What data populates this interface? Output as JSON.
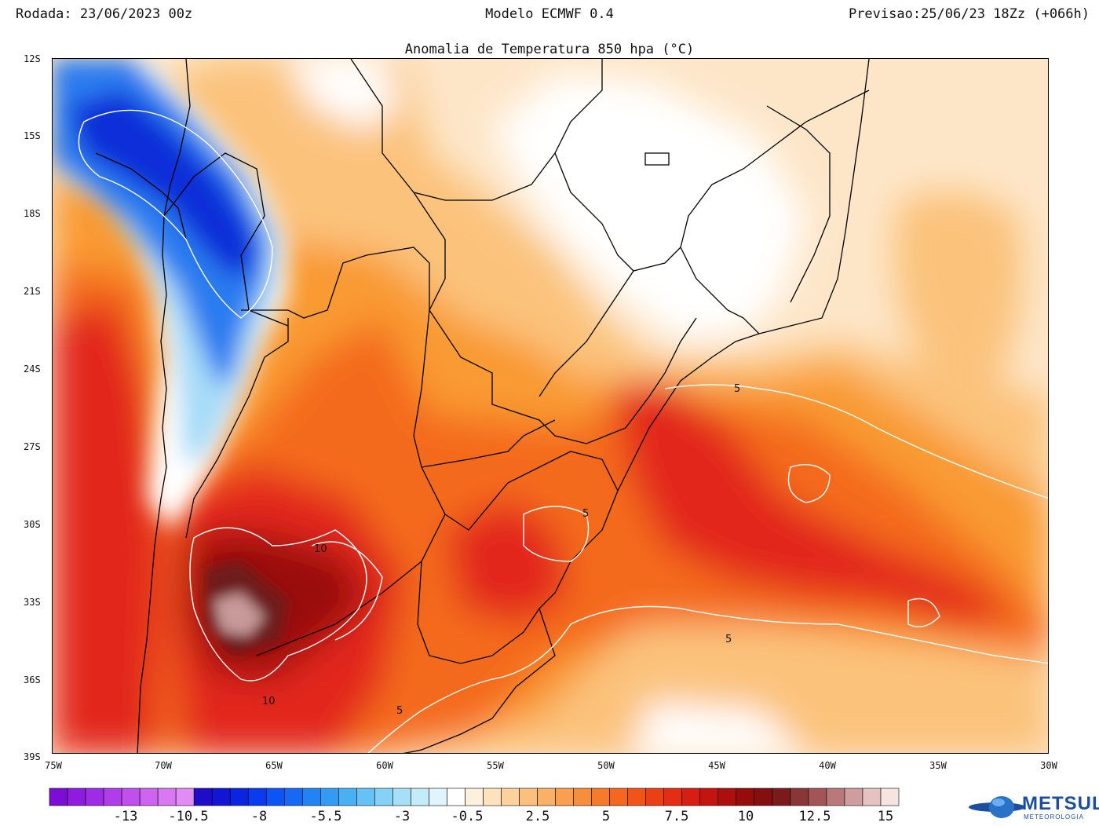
{
  "header": {
    "run": "Rodada: 23/06/2023 00z",
    "model": "Modelo ECMWF 0.4",
    "forecast": "Previsao:25/06/23 18Zz (+066h)",
    "title": "Anomalia de Temperatura 850 hpa (°C)"
  },
  "map": {
    "lat_labels": [
      "12S",
      "15S",
      "18S",
      "21S",
      "24S",
      "27S",
      "30S",
      "33S",
      "36S",
      "39S"
    ],
    "lon_labels": [
      "75W",
      "70W",
      "65W",
      "60W",
      "55W",
      "50W",
      "45W",
      "40W",
      "35W",
      "30W"
    ],
    "contour_labels": [
      "10",
      "10",
      "5",
      "5",
      "5",
      "5"
    ],
    "colors": {
      "deep_blue": "#0a2fd8",
      "blue": "#2b7cf0",
      "light_blue": "#a8dcf8",
      "white": "#ffffff",
      "cream": "#fde6c8",
      "light_orange": "#fbc27c",
      "orange": "#f99a33",
      "dark_orange": "#f46a1c",
      "red": "#e2281b",
      "dark_red": "#9a0d0d",
      "maroon": "#6e1a1a",
      "pink": "#c89a9a"
    }
  },
  "colorbar": {
    "labels": [
      "-13",
      "-10.5",
      "-8",
      "-5.5",
      "-3",
      "-0.5",
      "2.5",
      "5",
      "7.5",
      "10",
      "12.5",
      "15"
    ],
    "colors": [
      "#7d0cd6",
      "#8f1ae0",
      "#a02be6",
      "#b13ce9",
      "#c14fee",
      "#ce63f0",
      "#d878f3",
      "#e08cf4",
      "#1d0cc9",
      "#1214d6",
      "#0b24e2",
      "#0a3bef",
      "#0d54f5",
      "#1569f5",
      "#2383f3",
      "#339bf3",
      "#49b0f4",
      "#66c2f5",
      "#86d2f7",
      "#a6e0f8",
      "#c3ebfa",
      "#dff4fc",
      "#ffffff",
      "#fdf0dc",
      "#fde2bd",
      "#fcd19c",
      "#fbc07d",
      "#fab066",
      "#f99f4f",
      "#f88d3b",
      "#f77a2b",
      "#f5661f",
      "#f15319",
      "#ec3f16",
      "#e52c14",
      "#d81d12",
      "#c31410",
      "#ac0f0e",
      "#960c0d",
      "#840e10",
      "#7a1a1c",
      "#8a3638",
      "#a25456",
      "#b9787a",
      "#d09d9e",
      "#e6c3c3",
      "#f6e4e0"
    ]
  },
  "logo": {
    "name": "METSUL",
    "sub": "METEOROLOGIA"
  }
}
